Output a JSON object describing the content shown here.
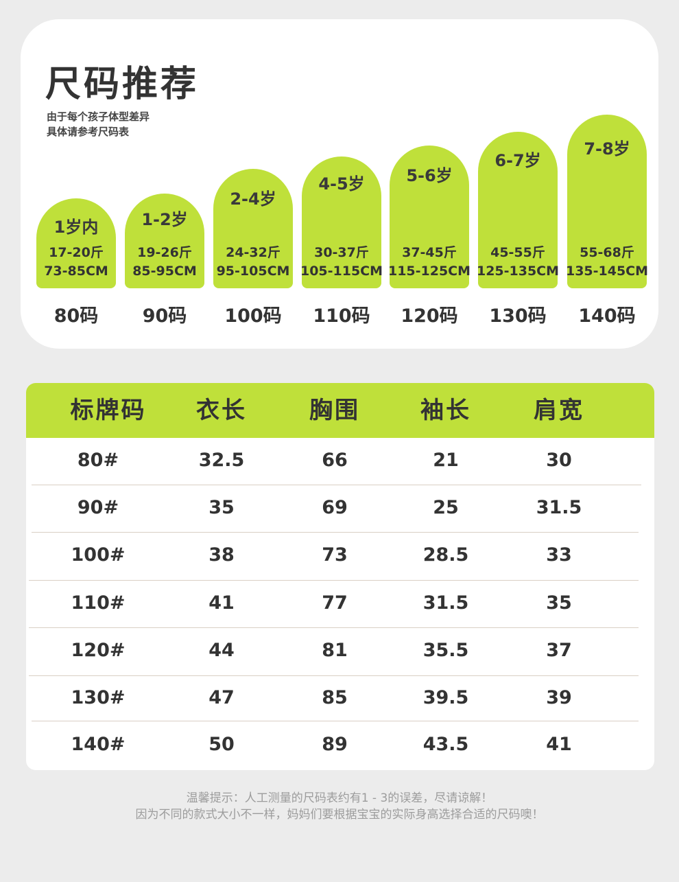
{
  "recommend": {
    "title": "尺码推荐",
    "subtitle_line1": "由于每个孩子体型差异",
    "subtitle_line2": "具体请参考尺码表",
    "sizes": [
      {
        "age": "1岁内",
        "weight": "17-20斤",
        "height": "73-85CM",
        "code": "80码"
      },
      {
        "age": "1-2岁",
        "weight": "19-26斤",
        "height": "85-95CM",
        "code": "90码"
      },
      {
        "age": "2-4岁",
        "weight": "24-32斤",
        "height": "95-105CM",
        "code": "100码"
      },
      {
        "age": "4-5岁",
        "weight": "30-37斤",
        "height": "105-115CM",
        "code": "110码"
      },
      {
        "age": "5-6岁",
        "weight": "37-45斤",
        "height": "115-125CM",
        "code": "120码"
      },
      {
        "age": "6-7岁",
        "weight": "45-55斤",
        "height": "125-135CM",
        "code": "130码"
      },
      {
        "age": "7-8岁",
        "weight": "55-68斤",
        "height": "135-145CM",
        "code": "140码"
      }
    ]
  },
  "table": {
    "headers": [
      "标牌码",
      "衣长",
      "胸围",
      "袖长",
      "肩宽"
    ],
    "rows": [
      [
        "80#",
        "32.5",
        "66",
        "21",
        "30"
      ],
      [
        "90#",
        "35",
        "69",
        "25",
        "31.5"
      ],
      [
        "100#",
        "38",
        "73",
        "28.5",
        "33"
      ],
      [
        "110#",
        "41",
        "77",
        "31.5",
        "35"
      ],
      [
        "120#",
        "44",
        "81",
        "35.5",
        "37"
      ],
      [
        "130#",
        "47",
        "85",
        "39.5",
        "39"
      ],
      [
        "140#",
        "50",
        "89",
        "43.5",
        "41"
      ]
    ]
  },
  "notes": {
    "line1": "温馨提示：人工测量的尺码表约有1 - 3的误差，尽请谅解！",
    "line2": "因为不同的款式大小不一样，妈妈们要根据宝宝的实际身高选择合适的尺码噢！"
  },
  "colors": {
    "accent": "#bfe03a",
    "background": "#ececec",
    "card": "#ffffff",
    "text": "#333333",
    "note": "#9c9c9c"
  }
}
